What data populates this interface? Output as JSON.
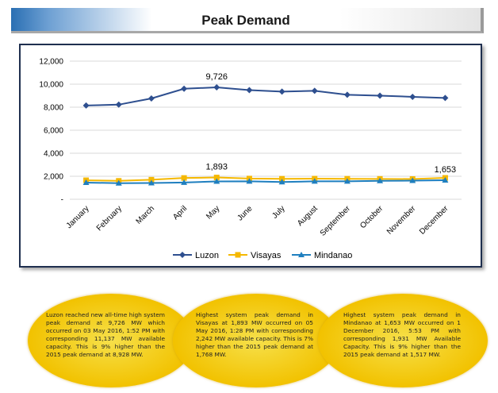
{
  "header": {
    "title": "Peak Demand"
  },
  "chart_data": {
    "type": "line",
    "categories": [
      "January",
      "February",
      "March",
      "April",
      "May",
      "June",
      "July",
      "August",
      "September",
      "October",
      "November",
      "December"
    ],
    "series": [
      {
        "name": "Luzon",
        "color": "#2e4f8f",
        "marker": "diamond",
        "values": [
          8150,
          8220,
          8760,
          9600,
          9726,
          9480,
          9350,
          9420,
          9080,
          9000,
          8900,
          8800
        ]
      },
      {
        "name": "Visayas",
        "color": "#f5b800",
        "marker": "square",
        "values": [
          1650,
          1600,
          1700,
          1850,
          1893,
          1800,
          1780,
          1790,
          1780,
          1770,
          1760,
          1860
        ]
      },
      {
        "name": "Mindanao",
        "color": "#1f7fbf",
        "marker": "triangle",
        "values": [
          1450,
          1400,
          1410,
          1460,
          1550,
          1560,
          1500,
          1560,
          1560,
          1600,
          1620,
          1653
        ]
      }
    ],
    "y_ticks": [
      "-",
      "2,000",
      "4,000",
      "6,000",
      "8,000",
      "10,000",
      "12,000"
    ],
    "ylim": [
      0,
      12000
    ],
    "data_labels": [
      {
        "series": 0,
        "index": 4,
        "text": "9,726"
      },
      {
        "series": 1,
        "index": 4,
        "text": "1,893"
      },
      {
        "series": 2,
        "index": 11,
        "text": "1,653"
      }
    ],
    "legend_position": "bottom",
    "grid": true
  },
  "notes": [
    "Luzon reached new all-time high system peak demand at 9,726 MW which occurred on 03 May 2016, 1:52 PM with corresponding 11,137 MW available capacity. This is 9% higher than the 2015 peak demand at 8,928 MW.",
    "Highest system peak demand in Visayas at 1,893 MW occurred on 05 May 2016, 1:28 PM with corresponding 2,242 MW available capacity. This is 7% higher than the 2015 peak demand at 1,768 MW.",
    "Highest system peak demand in Mindanao at 1,653 MW occurred on 1 December 2016, 5:53 PM with corresponding 1,931 MW Available Capacity. This is 9% higher than the 2015 peak demand at 1,517 MW."
  ]
}
